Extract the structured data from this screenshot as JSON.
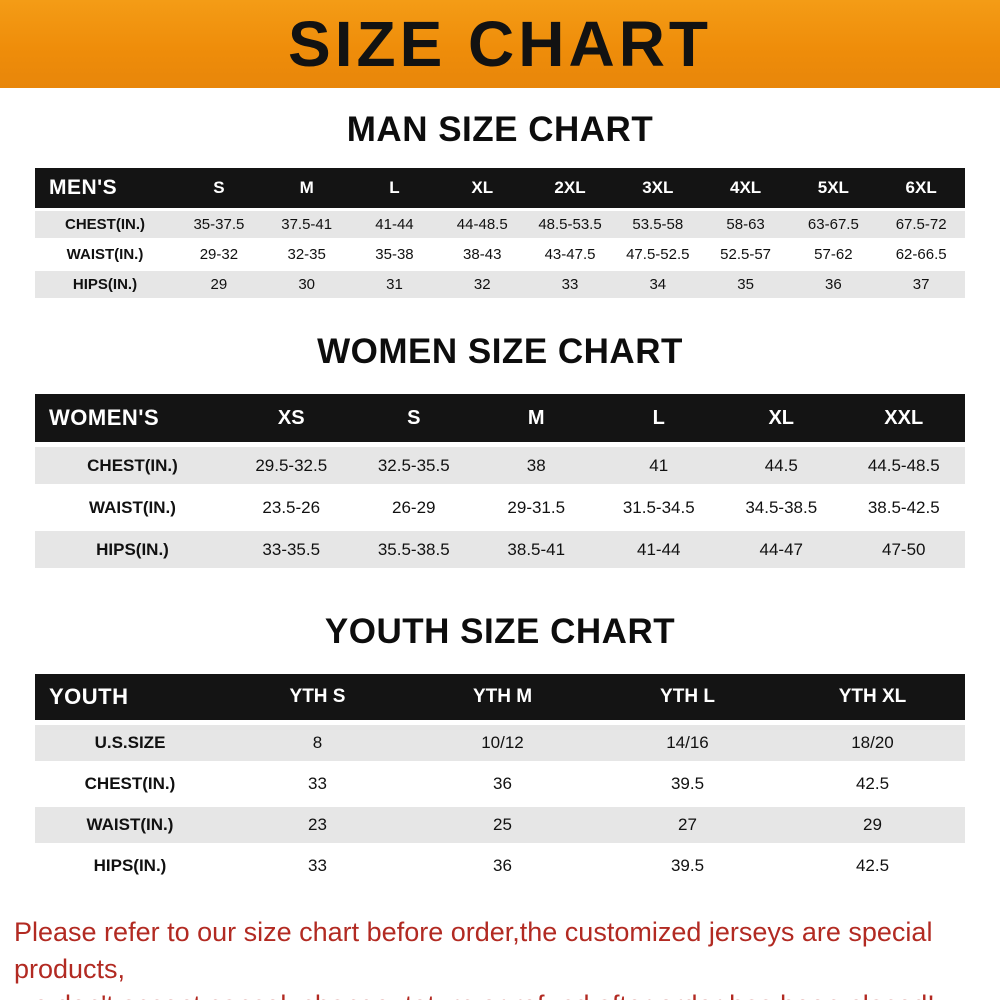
{
  "banner": {
    "title": "SIZE CHART",
    "bg_color": "#EF8D0A",
    "text_color": "#121212"
  },
  "colors": {
    "table_header_bg": "#141414",
    "row_shade_bg": "#E6E6E6",
    "notice_text": "#B22A22"
  },
  "chart_data": [
    {
      "type": "table",
      "title": "MAN SIZE CHART",
      "header_label": "MEN'S",
      "columns": [
        "S",
        "M",
        "L",
        "XL",
        "2XL",
        "3XL",
        "4XL",
        "5XL",
        "6XL"
      ],
      "rows": [
        {
          "label": "CHEST(IN.)",
          "values": [
            "35-37.5",
            "37.5-41",
            "41-44",
            "44-48.5",
            "48.5-53.5",
            "53.5-58",
            "58-63",
            "63-67.5",
            "67.5-72"
          ]
        },
        {
          "label": "WAIST(IN.)",
          "values": [
            "29-32",
            "32-35",
            "35-38",
            "38-43",
            "43-47.5",
            "47.5-52.5",
            "52.5-57",
            "57-62",
            "62-66.5"
          ]
        },
        {
          "label": "HIPS(IN.)",
          "values": [
            "29",
            "30",
            "31",
            "32",
            "33",
            "34",
            "35",
            "36",
            "37"
          ]
        }
      ]
    },
    {
      "type": "table",
      "title": "WOMEN SIZE CHART",
      "header_label": "WOMEN'S",
      "columns": [
        "XS",
        "S",
        "M",
        "L",
        "XL",
        "XXL"
      ],
      "rows": [
        {
          "label": "CHEST(IN.)",
          "values": [
            "29.5-32.5",
            "32.5-35.5",
            "38",
            "41",
            "44.5",
            "44.5-48.5"
          ]
        },
        {
          "label": "WAIST(IN.)",
          "values": [
            "23.5-26",
            "26-29",
            "29-31.5",
            "31.5-34.5",
            "34.5-38.5",
            "38.5-42.5"
          ]
        },
        {
          "label": "HIPS(IN.)",
          "values": [
            "33-35.5",
            "35.5-38.5",
            "38.5-41",
            "41-44",
            "44-47",
            "47-50"
          ]
        }
      ]
    },
    {
      "type": "table",
      "title": "YOUTH SIZE CHART",
      "header_label": "YOUTH",
      "columns": [
        "YTH S",
        "YTH M",
        "YTH L",
        "YTH XL"
      ],
      "rows": [
        {
          "label": "U.S.SIZE",
          "values": [
            "8",
            "10/12",
            "14/16",
            "18/20"
          ]
        },
        {
          "label": "CHEST(IN.)",
          "values": [
            "33",
            "36",
            "39.5",
            "42.5"
          ]
        },
        {
          "label": "WAIST(IN.)",
          "values": [
            "23",
            "25",
            "27",
            "29"
          ]
        },
        {
          "label": "HIPS(IN.)",
          "values": [
            "33",
            "36",
            "39.5",
            "42.5"
          ]
        }
      ]
    }
  ],
  "footer": {
    "line1": "Please refer to our size chart before order,the customized jerseys are special products,",
    "line2": "we don't accept cancel, change, teturn or refund after order has been placed!"
  }
}
